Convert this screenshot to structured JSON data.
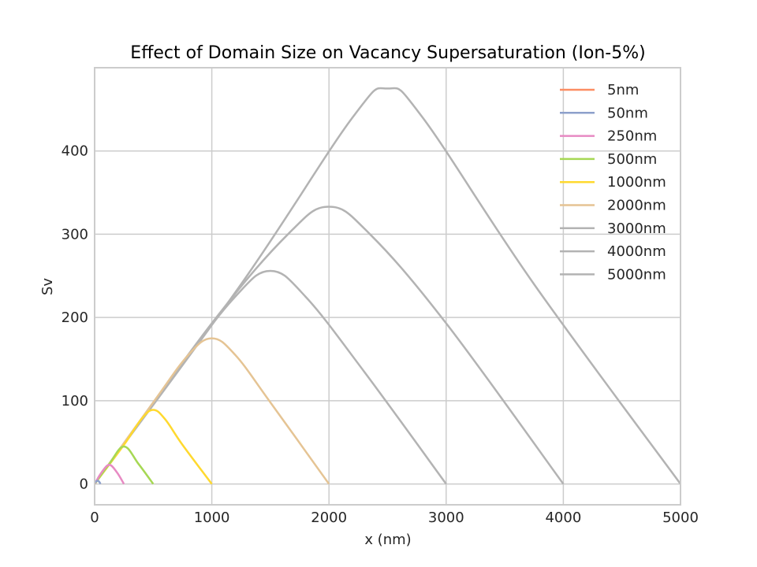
{
  "chart_data": {
    "type": "line",
    "title": "Effect of Domain Size on Vacancy Supersaturation (Ion-5%)",
    "xlabel": "x (nm)",
    "ylabel": "Sv",
    "xlim": [
      0,
      5000
    ],
    "ylim": [
      -25,
      500
    ],
    "xticks": [
      "0",
      "1000",
      "2000",
      "3000",
      "4000",
      "5000"
    ],
    "xtick_values": [
      0,
      1000,
      2000,
      3000,
      4000,
      5000
    ],
    "yticks": [
      "0",
      "100",
      "200",
      "300",
      "400"
    ],
    "ytick_values": [
      0,
      100,
      200,
      300,
      400
    ],
    "grid": true,
    "legend_position": "top-right",
    "series": [
      {
        "name": "5nm",
        "color": "#fc8d62",
        "points": [
          [
            0,
            0
          ],
          [
            1.25,
            0.2
          ],
          [
            2.5,
            0.3
          ],
          [
            3.75,
            0.2
          ],
          [
            5,
            0
          ]
        ]
      },
      {
        "name": "50nm",
        "color": "#8da0cb",
        "points": [
          [
            0,
            0
          ],
          [
            10,
            2.5
          ],
          [
            25,
            4
          ],
          [
            40,
            2.5
          ],
          [
            50,
            0
          ]
        ]
      },
      {
        "name": "250nm",
        "color": "#e78ac3",
        "points": [
          [
            0,
            0
          ],
          [
            60,
            14
          ],
          [
            125,
            23
          ],
          [
            190,
            14
          ],
          [
            250,
            0
          ]
        ]
      },
      {
        "name": "500nm",
        "color": "#a6d854",
        "points": [
          [
            0,
            0
          ],
          [
            125,
            24
          ],
          [
            250,
            45
          ],
          [
            375,
            24
          ],
          [
            500,
            0
          ]
        ]
      },
      {
        "name": "1000nm",
        "color": "#ffd92f",
        "points": [
          [
            0,
            0
          ],
          [
            250,
            47
          ],
          [
            400,
            78
          ],
          [
            500,
            89
          ],
          [
            600,
            78
          ],
          [
            750,
            47
          ],
          [
            1000,
            0
          ]
        ]
      },
      {
        "name": "2000nm",
        "color": "#e5c494",
        "points": [
          [
            0,
            0
          ],
          [
            500,
            98
          ],
          [
            800,
            155
          ],
          [
            1000,
            175
          ],
          [
            1200,
            155
          ],
          [
            1500,
            98
          ],
          [
            2000,
            0
          ]
        ]
      },
      {
        "name": "3000nm",
        "color": "#b3b3b3",
        "points": [
          [
            0,
            0
          ],
          [
            700,
            135
          ],
          [
            1200,
            225
          ],
          [
            1500,
            256
          ],
          [
            1800,
            225
          ],
          [
            2300,
            135
          ],
          [
            3000,
            0
          ]
        ]
      },
      {
        "name": "4000nm",
        "color": "#b3b3b3",
        "points": [
          [
            0,
            0
          ],
          [
            1000,
            193
          ],
          [
            1650,
            300
          ],
          [
            2000,
            333
          ],
          [
            2350,
            300
          ],
          [
            3000,
            193
          ],
          [
            4000,
            0
          ]
        ]
      },
      {
        "name": "5000nm",
        "color": "#b3b3b3",
        "points": [
          [
            0,
            0
          ],
          [
            1250,
            240
          ],
          [
            2200,
            440
          ],
          [
            2500,
            475
          ],
          [
            2800,
            440
          ],
          [
            3750,
            240
          ],
          [
            5000,
            0
          ]
        ]
      }
    ]
  }
}
